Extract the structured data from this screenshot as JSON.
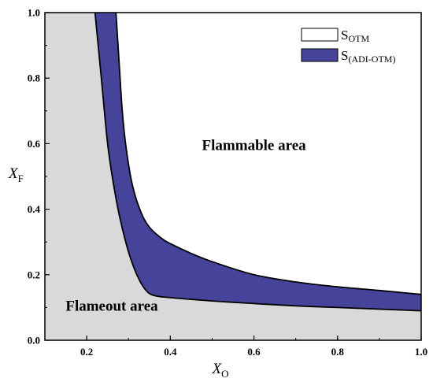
{
  "chart_data": {
    "type": "area",
    "xlabel": {
      "main": "X",
      "sub": "O"
    },
    "ylabel": {
      "main": "X",
      "sub": "F"
    },
    "xlim": [
      0.1,
      1.0
    ],
    "ylim": [
      0.0,
      1.0
    ],
    "xticks": [
      0.2,
      0.4,
      0.6,
      0.8,
      1.0
    ],
    "yticks": [
      0.0,
      0.2,
      0.4,
      0.6,
      0.8,
      1.0
    ],
    "xtick_labels": [
      "0.2",
      "0.4",
      "0.6",
      "0.8",
      "1.0"
    ],
    "ytick_labels": [
      "0.0",
      "0.2",
      "0.4",
      "0.6",
      "0.8",
      "1.0"
    ],
    "grid": false,
    "legend_position": "top-right",
    "series": [
      {
        "name": "S",
        "name_sub": "OTM",
        "color": "#ffffff",
        "boundary": {
          "x": [
            0.22,
            0.235,
            0.25,
            0.265,
            0.28,
            0.3,
            0.32,
            0.34,
            0.36,
            0.4,
            0.5,
            0.6,
            0.7,
            0.8,
            0.9,
            1.0
          ],
          "y": [
            1.0,
            0.8,
            0.6,
            0.47,
            0.37,
            0.27,
            0.2,
            0.155,
            0.137,
            0.13,
            0.12,
            0.112,
            0.105,
            0.1,
            0.095,
            0.09
          ]
        }
      },
      {
        "name": "S",
        "name_sub": "(ADI-OTM)",
        "color": "#45449a",
        "boundary": {
          "x": [
            0.27,
            0.278,
            0.285,
            0.295,
            0.31,
            0.33,
            0.35,
            0.38,
            0.4,
            0.45,
            0.5,
            0.6,
            0.7,
            0.8,
            0.9,
            1.0
          ],
          "y": [
            1.0,
            0.84,
            0.7,
            0.58,
            0.47,
            0.39,
            0.345,
            0.31,
            0.295,
            0.265,
            0.24,
            0.2,
            0.178,
            0.163,
            0.152,
            0.14
          ]
        }
      }
    ],
    "annotations": [
      {
        "text": "Flammable area",
        "x": 0.6,
        "y": 0.58
      },
      {
        "text": "Flameout area",
        "x": 0.26,
        "y": 0.09
      }
    ],
    "colors": {
      "flameout": "#d9d9d9",
      "flammable": "#ffffff",
      "adi_band": "#45449a"
    }
  }
}
